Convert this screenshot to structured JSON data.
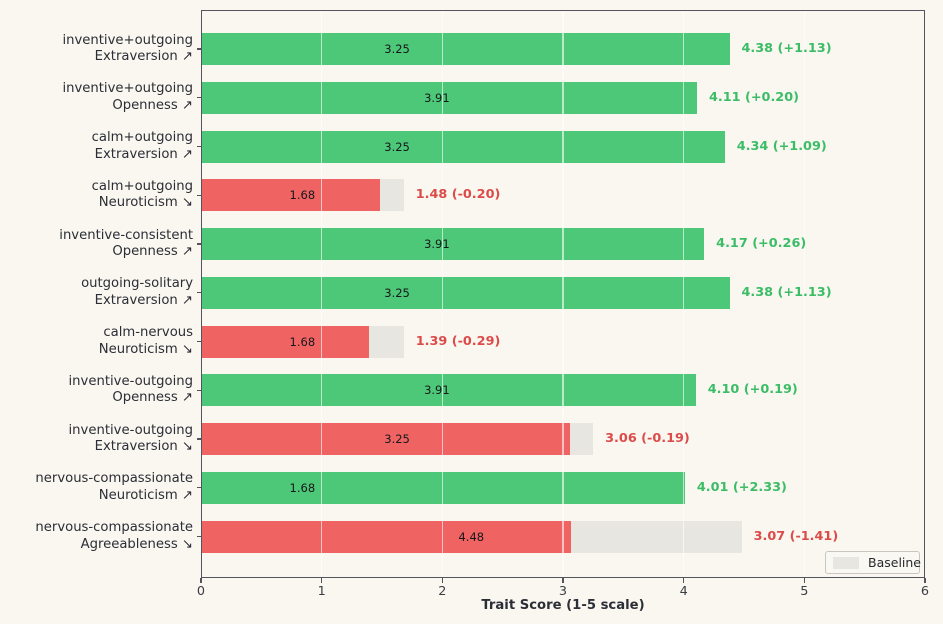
{
  "figure": {
    "background": "#faf7f0",
    "xlabel": "Trait Score (1-5 scale)",
    "legend_label": "Baseline"
  },
  "colors": {
    "increase_bar": "#4cc878",
    "decrease_bar": "#ef6363",
    "increase_text": "#3bbd67",
    "decrease_text": "#dc4b49",
    "baseline_bar": "#e8e6e1",
    "spine": "#54555c"
  },
  "chart_data": {
    "type": "bar",
    "orientation": "horizontal",
    "title": "",
    "xlabel": "Trait Score (1-5 scale)",
    "ylabel": "",
    "xlim": [
      0,
      6
    ],
    "xticks": [
      "0",
      "1",
      "2",
      "3",
      "4",
      "5",
      "6"
    ],
    "grid": true,
    "legend": {
      "position": "lower right",
      "entries": [
        {
          "label": "Baseline",
          "swatch_color": "#e8e6e1"
        }
      ]
    },
    "series": [
      {
        "name": "Baseline",
        "values": [
          3.25,
          3.91,
          3.25,
          1.68,
          3.91,
          3.25,
          1.68,
          3.91,
          3.25,
          1.68,
          4.48
        ]
      },
      {
        "name": "Score",
        "values": [
          4.38,
          4.11,
          4.34,
          1.48,
          4.17,
          4.38,
          1.39,
          4.1,
          3.06,
          4.01,
          3.07
        ]
      }
    ],
    "rows": [
      {
        "line1": "inventive+outgoing",
        "line2": "Extraversion ↗",
        "baseline": 3.25,
        "value": 4.38,
        "baseline_label": "3.25",
        "value_label": "4.38 (+1.13)",
        "direction": "increase"
      },
      {
        "line1": "inventive+outgoing",
        "line2": "Openness ↗",
        "baseline": 3.91,
        "value": 4.11,
        "baseline_label": "3.91",
        "value_label": "4.11 (+0.20)",
        "direction": "increase"
      },
      {
        "line1": "calm+outgoing",
        "line2": "Extraversion ↗",
        "baseline": 3.25,
        "value": 4.34,
        "baseline_label": "3.25",
        "value_label": "4.34 (+1.09)",
        "direction": "increase"
      },
      {
        "line1": "calm+outgoing",
        "line2": "Neuroticism ↘",
        "baseline": 1.68,
        "value": 1.48,
        "baseline_label": "1.68",
        "value_label": "1.48 (-0.20)",
        "direction": "decrease"
      },
      {
        "line1": "inventive-consistent",
        "line2": "Openness ↗",
        "baseline": 3.91,
        "value": 4.17,
        "baseline_label": "3.91",
        "value_label": "4.17 (+0.26)",
        "direction": "increase"
      },
      {
        "line1": "outgoing-solitary",
        "line2": "Extraversion ↗",
        "baseline": 3.25,
        "value": 4.38,
        "baseline_label": "3.25",
        "value_label": "4.38 (+1.13)",
        "direction": "increase"
      },
      {
        "line1": "calm-nervous",
        "line2": "Neuroticism ↘",
        "baseline": 1.68,
        "value": 1.39,
        "baseline_label": "1.68",
        "value_label": "1.39 (-0.29)",
        "direction": "decrease"
      },
      {
        "line1": "inventive-outgoing",
        "line2": "Openness ↗",
        "baseline": 3.91,
        "value": 4.1,
        "baseline_label": "3.91",
        "value_label": "4.10 (+0.19)",
        "direction": "increase"
      },
      {
        "line1": "inventive-outgoing",
        "line2": "Extraversion ↘",
        "baseline": 3.25,
        "value": 3.06,
        "baseline_label": "3.25",
        "value_label": "3.06 (-0.19)",
        "direction": "decrease"
      },
      {
        "line1": "nervous-compassionate",
        "line2": "Neuroticism ↗",
        "baseline": 1.68,
        "value": 4.01,
        "baseline_label": "1.68",
        "value_label": "4.01 (+2.33)",
        "direction": "increase"
      },
      {
        "line1": "nervous-compassionate",
        "line2": "Agreeableness ↘",
        "baseline": 4.48,
        "value": 3.07,
        "baseline_label": "4.48",
        "value_label": "3.07 (-1.41)",
        "direction": "decrease"
      }
    ]
  }
}
